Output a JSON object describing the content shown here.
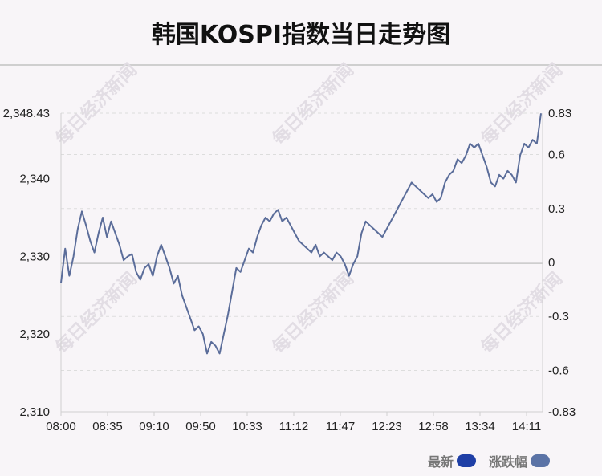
{
  "title": "韩国KOSPI指数当日走势图",
  "watermark": "每日经济新闻",
  "legend": {
    "latest_label": "最新",
    "latest_color": "#1f3fa6",
    "change_label": "涨跌幅",
    "change_color": "#5b73a6"
  },
  "chart_data": {
    "type": "line",
    "line_color": "#5b6d9a",
    "x_ticks": [
      "08:00",
      "08:35",
      "09:10",
      "09:50",
      "10:33",
      "11:12",
      "11:47",
      "12:23",
      "12:58",
      "13:34",
      "14:11"
    ],
    "y_left_ticks": [
      "2,348.43",
      "2,340",
      "2,330",
      "2,320",
      "2,310"
    ],
    "y_left_tick_values": [
      2348.43,
      2340,
      2330,
      2320,
      2310
    ],
    "y_right_ticks": [
      "0.83",
      "0.6",
      "0.3",
      "0",
      "-0.3",
      "-0.6",
      "-0.83"
    ],
    "y_right_tick_values": [
      0.83,
      0.6,
      0.3,
      0,
      -0.3,
      -0.6,
      -0.83
    ],
    "ylim": [
      2310,
      2348.43
    ],
    "ylim_right": [
      -0.83,
      0.83
    ],
    "baseline_value": 2329.1,
    "grid": "dashed horizontal",
    "series": [
      {
        "values": [
          2326.6,
          2331.0,
          2327.5,
          2330.0,
          2333.5,
          2335.8,
          2334.0,
          2332.0,
          2330.5,
          2333.0,
          2335.0,
          2332.5,
          2334.5,
          2333.0,
          2331.5,
          2329.5,
          2330.0,
          2330.3,
          2328.0,
          2327.0,
          2328.5,
          2329.0,
          2327.5,
          2330.0,
          2331.5,
          2330.0,
          2328.5,
          2326.5,
          2327.5,
          2325.0,
          2323.5,
          2322.0,
          2320.5,
          2321.0,
          2320.0,
          2317.5,
          2319.0,
          2318.5,
          2317.5,
          2320.0,
          2322.5,
          2325.5,
          2328.5,
          2328.0,
          2329.5,
          2331.0,
          2330.5,
          2332.5,
          2334.0,
          2335.0,
          2334.5,
          2335.5,
          2336.0,
          2334.5,
          2335.0,
          2334.0,
          2333.0,
          2332.0,
          2331.5,
          2331.0,
          2330.5,
          2331.5,
          2330.0,
          2330.5,
          2330.0,
          2329.5,
          2330.5,
          2330.0,
          2329.0,
          2327.5,
          2329.0,
          2330.0,
          2333.0,
          2334.5,
          2334.0,
          2333.5,
          2333.0,
          2332.5,
          2333.5,
          2334.5,
          2335.5,
          2336.5,
          2337.5,
          2338.5,
          2339.5,
          2339.0,
          2338.5,
          2338.0,
          2337.5,
          2338.0,
          2337.0,
          2337.5,
          2339.5,
          2340.5,
          2341.0,
          2342.5,
          2342.0,
          2343.0,
          2344.5,
          2344.0,
          2344.5,
          2343.0,
          2341.5,
          2339.5,
          2339.0,
          2340.5,
          2340.0,
          2341.0,
          2340.5,
          2339.5,
          2343.0,
          2344.5,
          2344.0,
          2345.0,
          2344.5,
          2348.4
        ]
      }
    ]
  }
}
